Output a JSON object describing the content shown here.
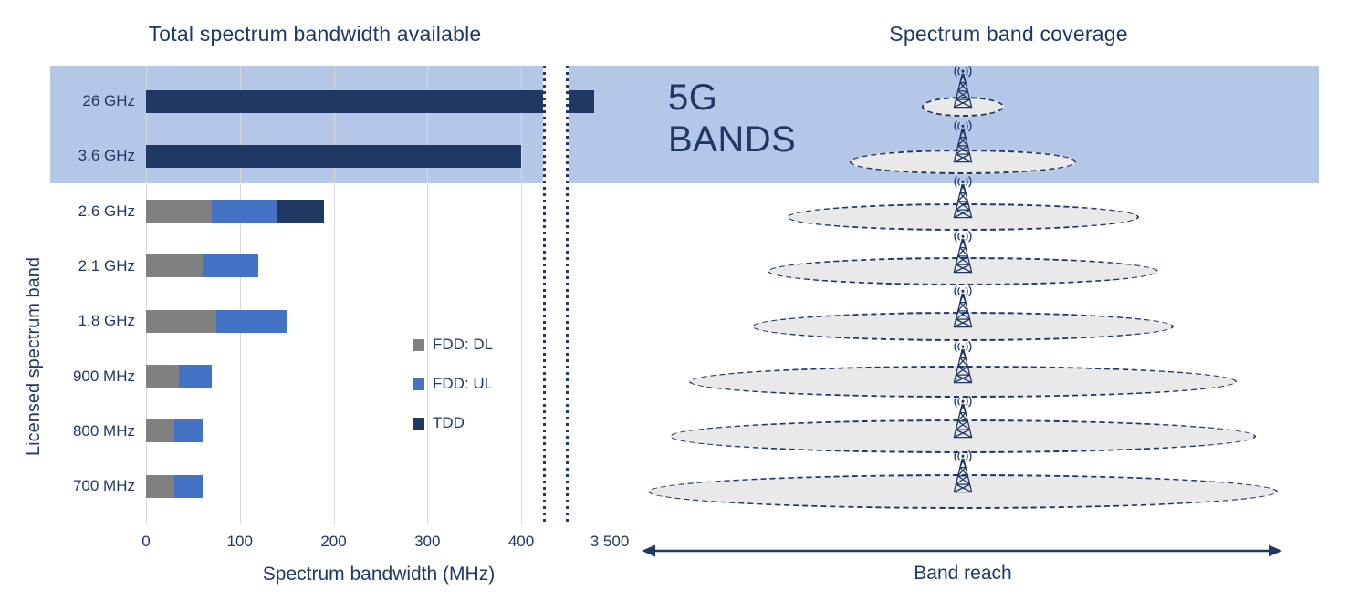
{
  "titles": {
    "left": "Total spectrum bandwidth available",
    "right": "Spectrum band coverage"
  },
  "banner": {
    "line1": "5G",
    "line2": "BANDS",
    "highlight_bands": [
      "26 GHz",
      "3.6 GHz"
    ]
  },
  "colors": {
    "navy": "#1f3864",
    "fdd_dl": "#808080",
    "fdd_ul": "#4472c4",
    "tdd": "#1f3864",
    "banner_blue": "#b4c7e7",
    "ellipse_fill": "#e9e9e9",
    "gridline": "#d9d9d9"
  },
  "chart_data": {
    "type": "bar",
    "orientation": "horizontal",
    "title": "Total spectrum bandwidth available",
    "xlabel": "Spectrum bandwidth (MHz)",
    "ylabel": "Licensed spectrum band",
    "grid": true,
    "categories": [
      "26 GHz",
      "3.6 GHz",
      "2.6 GHz",
      "2.1 GHz",
      "1.8 GHz",
      "900 MHz",
      "800 MHz",
      "700 MHz"
    ],
    "series": [
      {
        "name": "FDD: DL",
        "color": "#808080",
        "values": [
          0,
          0,
          70,
          60,
          75,
          35,
          30,
          30
        ]
      },
      {
        "name": "FDD: UL",
        "color": "#4472c4",
        "values": [
          0,
          0,
          70,
          60,
          75,
          35,
          30,
          30
        ]
      },
      {
        "name": "TDD",
        "color": "#1f3864",
        "values": [
          3500,
          400,
          50,
          0,
          0,
          0,
          0,
          0
        ]
      }
    ],
    "x_tick_values": [
      0,
      100,
      200,
      300,
      400
    ],
    "x_tick_labels": [
      "0",
      "100",
      "200",
      "300",
      "400"
    ],
    "axis_break": true,
    "axis_break_label": "3 500",
    "xlim_main": [
      0,
      430
    ],
    "legend_position": "inside-right",
    "highlight_label": "5G BANDS"
  },
  "legend": {
    "items": [
      {
        "label": "FDD: DL",
        "color": "#808080"
      },
      {
        "label": "FDD: UL",
        "color": "#4472c4"
      },
      {
        "label": "TDD",
        "color": "#1f3864"
      }
    ]
  },
  "coverage": {
    "title": "Spectrum band coverage",
    "reach_label": "Band reach",
    "bands": [
      "26 GHz",
      "3.6 GHz",
      "2.6 GHz",
      "2.1 GHz",
      "1.8 GHz",
      "900 MHz",
      "800 MHz",
      "700 MHz"
    ],
    "relative_reach": [
      0.13,
      0.36,
      0.56,
      0.62,
      0.67,
      0.87,
      0.93,
      1.0
    ]
  }
}
